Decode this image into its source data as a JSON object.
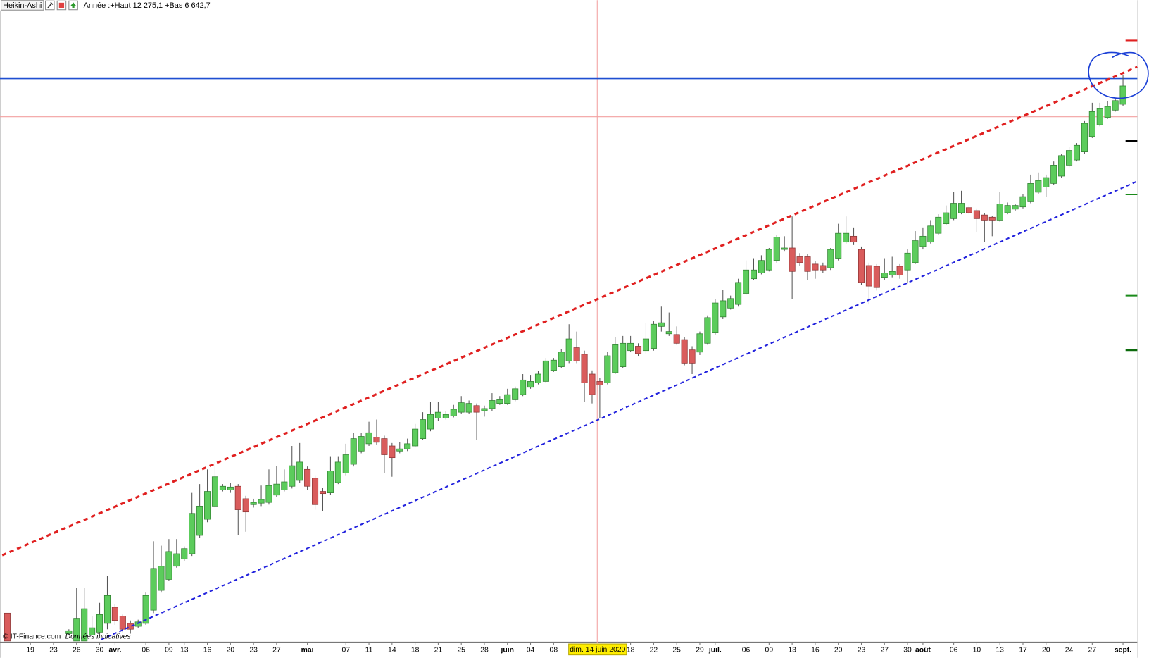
{
  "chart_data": {
    "type": "candlestick",
    "title": "Heikin-Ashi",
    "subtitle": "Année :+Haut 12 275,1 +Bas 6 642,7",
    "crosshair_label": "dim. 14 juin 2020",
    "source": "© IT-Finance.com",
    "note": "Données indicatives",
    "up_color": "#5ccc5c",
    "down_color": "#d95c5c",
    "ylim": [
      6600,
      13155
    ],
    "categories": [
      null,
      null,
      null,
      "19",
      null,
      null,
      "23",
      null,
      null,
      "26",
      null,
      null,
      "30",
      null,
      "avr.",
      null,
      null,
      null,
      "06",
      null,
      null,
      "09",
      null,
      "13",
      null,
      null,
      "16",
      null,
      null,
      "20",
      null,
      null,
      "23",
      null,
      null,
      "27",
      null,
      null,
      null,
      "mai",
      null,
      null,
      null,
      null,
      "07",
      null,
      null,
      "11",
      null,
      null,
      "14",
      null,
      null,
      "18",
      null,
      null,
      "21",
      null,
      null,
      "25",
      null,
      null,
      "28",
      null,
      null,
      "juin",
      null,
      null,
      "04",
      null,
      null,
      "08",
      null,
      null,
      null,
      null,
      null,
      null,
      null,
      null,
      null,
      "18",
      null,
      null,
      "22",
      null,
      null,
      "25",
      null,
      null,
      "29",
      null,
      "juil.",
      null,
      null,
      null,
      "06",
      null,
      null,
      "09",
      null,
      null,
      "13",
      null,
      null,
      "16",
      null,
      null,
      "20",
      null,
      null,
      "23",
      null,
      null,
      "27",
      null,
      null,
      "30",
      null,
      "août",
      null,
      null,
      null,
      "06",
      null,
      null,
      "10",
      null,
      null,
      "13",
      null,
      null,
      "17",
      null,
      null,
      "20",
      null,
      null,
      "24",
      null,
      null,
      "27",
      null,
      null,
      null,
      "sept."
    ],
    "open": [
      6885,
      null,
      null,
      null,
      null,
      null,
      null,
      null,
      6675,
      6600,
      6600,
      6660,
      6690,
      6780,
      6945,
      6855,
      6780,
      6750,
      6780,
      6915,
      7117.5,
      7230,
      7365,
      7440,
      7492.5,
      7680,
      7845,
      7980,
      8145,
      8145,
      8182.5,
      8055,
      7995,
      8010,
      8017.5,
      8092.5,
      8145,
      8182.5,
      8242.5,
      8355,
      8265,
      8130,
      8115,
      8220,
      8317.5,
      8407.5,
      8542.5,
      8617.5,
      8685,
      8670,
      8595,
      8542.5,
      8565,
      8595,
      8670,
      8767.5,
      8880,
      8880,
      8902.5,
      8940,
      8940,
      9007.5,
      8955,
      8977.5,
      9030,
      9030,
      9067.5,
      9120,
      9195,
      9240,
      9255,
      9367.5,
      9405,
      9465,
      9600,
      9532.5,
      9330,
      9255,
      9240,
      9345,
      9405,
      9570,
      9615,
      9570,
      9592.5,
      9817.5,
      9742.5,
      9735,
      9682.5,
      9577.5,
      9555,
      9645,
      9757.5,
      9915,
      10005,
      10042.5,
      10155,
      10305,
      10365,
      10395,
      10492.5,
      10605,
      10620,
      10530,
      10530,
      10455,
      10440,
      10417.5,
      10515,
      10680,
      10740,
      10605,
      10440,
      10432.5,
      10320,
      10342.5,
      10432.5,
      10395,
      10470,
      10635,
      10680,
      10770,
      10867.5,
      10920,
      10980,
      11032.5,
      11002.5,
      10957.5,
      10935,
      10905,
      10980,
      11017.5,
      11040,
      11092.5,
      11190,
      11242.5,
      11280,
      11355,
      11467.5,
      11520,
      11602.5,
      11760,
      11880,
      11955,
      12030,
      12090
    ],
    "high": [
      6885,
      null,
      null,
      null,
      null,
      null,
      null,
      null,
      6720,
      7140,
      7140,
      6855,
      6990,
      7267.5,
      6975,
      6870,
      6810,
      6817.5,
      7095,
      7620,
      7575,
      7642.5,
      7642.5,
      7567.5,
      8115,
      8205,
      8355,
      8430,
      8205,
      8220,
      8205,
      8085,
      8055,
      8190,
      8355,
      8392.5,
      8355,
      8595,
      8625,
      8385,
      8295,
      8167.5,
      8490,
      8490,
      8617.5,
      8730,
      8730,
      8842.5,
      8865,
      8700,
      8625,
      8632.5,
      8670,
      8820,
      8940,
      9045,
      9045,
      8955,
      9015,
      9105,
      9060,
      9030,
      9007.5,
      9135,
      9105,
      9180,
      9202.5,
      9330,
      9315,
      9360,
      9495,
      9495,
      9585,
      9840,
      9765,
      9570,
      9367.5,
      9292.5,
      9555,
      9705,
      9720,
      9720,
      9645,
      9855,
      9870,
      10020,
      9960,
      9817.5,
      9705,
      9615,
      9765,
      9930,
      10095,
      10192.5,
      10132.5,
      10305,
      10492.5,
      10515,
      10545,
      10620,
      10755,
      10740,
      10942.5,
      10567.5,
      10560,
      10485,
      10470,
      10620,
      10867.5,
      10942.5,
      10830,
      10635,
      10470,
      10455,
      10515,
      10530,
      10455,
      10605,
      10792.5,
      10830,
      10905,
      10965,
      11055,
      11190,
      11205,
      11055,
      11025,
      10980,
      10950,
      11190,
      11085,
      11070,
      11167.5,
      11370,
      11392.5,
      11370,
      11505,
      11580,
      11655,
      11692.5,
      11917.5,
      12105,
      12105,
      12120,
      12150,
      12390
    ],
    "low": [
      6600,
      null,
      null,
      null,
      null,
      null,
      null,
      null,
      6660,
      6600,
      6600,
      6660,
      6630,
      6720,
      6765,
      6690,
      6675,
      6735,
      6765,
      6885,
      7095,
      7215,
      7350,
      7417.5,
      7470,
      7657.5,
      7815,
      7965,
      8130,
      8115,
      7680,
      7717.5,
      7965,
      7980,
      7995,
      8070,
      8130,
      8160,
      8220,
      8145,
      7942.5,
      7927.5,
      8092.5,
      8205,
      8295,
      8385,
      8520,
      8595,
      8610,
      8317.5,
      8280,
      8520,
      8542.5,
      8580,
      8655,
      8745,
      8850,
      8865,
      8887.5,
      8925,
      8925,
      8655,
      8895,
      8955,
      9015,
      9015,
      9052.5,
      9105,
      9180,
      9225,
      9240,
      9352.5,
      9390,
      9442.5,
      9442.5,
      9045,
      9030,
      8880,
      9225,
      9330,
      9390,
      9555,
      9510,
      9540,
      9570,
      9765,
      9720,
      9630,
      9420,
      9330,
      9525,
      9630,
      9735,
      9892.5,
      9990,
      10020,
      10140,
      10290,
      10350,
      10380,
      10470,
      10590,
      10095,
      10440,
      10290,
      10305,
      10365,
      10395,
      10492.5,
      10665,
      10650,
      10245,
      10042.5,
      10185,
      10290,
      10320,
      10305,
      10267.5,
      10455,
      10605,
      10665,
      10755,
      10852.5,
      10905,
      10965,
      10965,
      10785,
      10680,
      10740,
      10890,
      10965,
      11002.5,
      11025,
      11077.5,
      11175,
      11145,
      11265,
      11340,
      11445,
      11505,
      11580,
      11745,
      11865,
      11940,
      12015,
      12075
    ],
    "close": [
      6600,
      null,
      null,
      null,
      null,
      null,
      null,
      null,
      6705,
      6832.5,
      6930,
      6735,
      6870,
      7065,
      6810,
      6720,
      6720,
      6795,
      7065,
      7342.5,
      7365,
      7515,
      7492.5,
      7545,
      7905,
      7980,
      8130,
      8280,
      8182.5,
      8175,
      7942.5,
      7920,
      8017.5,
      8047.5,
      8190,
      8205,
      8227.5,
      8392.5,
      8430,
      8182.5,
      7995,
      8107.5,
      8340,
      8430,
      8505,
      8670,
      8692.5,
      8730,
      8632.5,
      8505,
      8475,
      8565,
      8617.5,
      8767.5,
      8865,
      8917.5,
      8940,
      8917.5,
      8970,
      9037.5,
      9030,
      8940,
      8977.5,
      9060,
      9067.5,
      9120,
      9180,
      9270,
      9255,
      9330,
      9465,
      9472.5,
      9555,
      9690,
      9465,
      9240,
      9120,
      9217.5,
      9517.5,
      9630,
      9645,
      9645,
      9540,
      9690,
      9840,
      9855,
      9765,
      9645,
      9442.5,
      9442.5,
      9742.5,
      9907.5,
      10057.5,
      10080,
      10102.5,
      10267.5,
      10395,
      10395,
      10492.5,
      10605,
      10732.5,
      10620,
      10380,
      10470,
      10380,
      10395,
      10395,
      10605,
      10770,
      10770,
      10680,
      10267.5,
      10230,
      10215,
      10365,
      10380,
      10342.5,
      10567.5,
      10695,
      10740,
      10845,
      10935,
      10980,
      11077.5,
      11077.5,
      10980,
      10920,
      10905,
      10905,
      11070,
      11055,
      11055,
      11145,
      11280,
      11310,
      11340,
      11467.5,
      11565,
      11617.5,
      11670,
      11895,
      12015,
      12045,
      12067.5,
      12127.5,
      12277.5
    ]
  }
}
